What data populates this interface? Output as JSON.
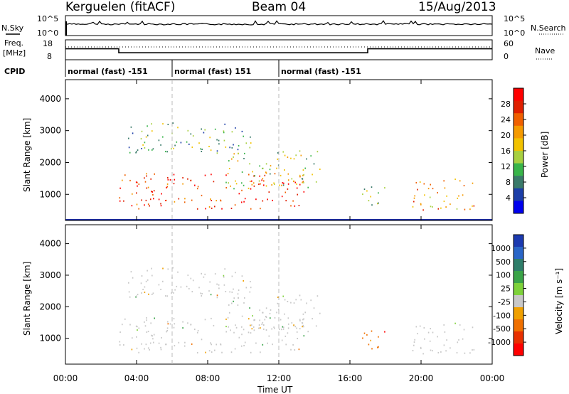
{
  "header": {
    "station": "Kerguelen (fitACF)",
    "beam": "Beam 04",
    "date": "15/Aug/2013"
  },
  "status_panels": {
    "nsky_label": "N.Sky",
    "nsearch_label": "N.Search",
    "freq_label_line1": "Freq.",
    "freq_label_line2": "[MHz]",
    "nave_label": "Nave",
    "cpid_label": "CPID",
    "nsky_ticks": [
      "10^5",
      "10^0"
    ],
    "nsearch_ticks": [
      "10^5",
      "10^0"
    ],
    "freq_ticks": [
      "18",
      "8"
    ],
    "nave_ticks": [
      "60",
      "0"
    ],
    "freq_levels": [
      {
        "start": 0,
        "end": 3,
        "mhz": 13.5
      },
      {
        "start": 3,
        "end": 17,
        "mhz": 11.5
      },
      {
        "start": 17,
        "end": 24,
        "mhz": 13.5
      }
    ],
    "cpid_segments": [
      {
        "start": 0,
        "end": 6,
        "label": "normal (fast) -151"
      },
      {
        "start": 6,
        "end": 12,
        "label": "normal (fast) 151"
      },
      {
        "start": 12,
        "end": 24,
        "label": "normal (fast) -151"
      }
    ]
  },
  "xaxis": {
    "label": "Time UT",
    "ticks": [
      "00:00",
      "04:00",
      "08:00",
      "12:00",
      "16:00",
      "20:00",
      "00:00"
    ]
  },
  "power_panel": {
    "ylabel": "Slant Range [km]",
    "yticks": [
      "1000",
      "2000",
      "3000",
      "4000"
    ],
    "colorbar_label": "Power [dB]",
    "colorbar_ticks": [
      "4",
      "8",
      "12",
      "16",
      "20",
      "24",
      "28"
    ],
    "colorbar_colors": [
      "#0000ee",
      "#1c3ea8",
      "#3a7a6a",
      "#39b54a",
      "#a8d040",
      "#f2c200",
      "#f59a00",
      "#f06000",
      "#e02000",
      "#ff0000"
    ]
  },
  "velocity_panel": {
    "ylabel": "Slant Range [km]",
    "yticks": [
      "1000",
      "2000",
      "3000",
      "4000"
    ],
    "colorbar_label": "Velocity [m s⁻¹]",
    "colorbar_ticks": [
      "1000",
      "500",
      "100",
      "25",
      "-25",
      "-100",
      "-500",
      "-1000"
    ],
    "colorbar_colors": [
      "#1c3ab0",
      "#2a66c8",
      "#2f7e6a",
      "#3aa448",
      "#7ed23a",
      "#c8c8c8",
      "#f0a000",
      "#f07000",
      "#e83000",
      "#ff0000"
    ]
  },
  "chart_data": {
    "type": "heatmap",
    "title": "Kerguelen (fitACF) Beam 04 15/Aug/2013",
    "xlabel": "Time UT",
    "ylabel": "Slant Range [km]",
    "xlim": [
      0,
      24
    ],
    "ylim": [
      180,
      4600
    ],
    "gridlines": [
      6,
      12
    ],
    "echo_regions": [
      {
        "t0": 3.0,
        "t1": 13.5,
        "r0": 550,
        "r1": 1700,
        "power_db": 26,
        "velocity": 25
      },
      {
        "t0": 3.5,
        "t1": 10.5,
        "r0": 2300,
        "r1": 3300,
        "power_db": 10,
        "velocity": 25
      },
      {
        "t0": 9.0,
        "t1": 14.5,
        "r0": 1200,
        "r1": 2400,
        "power_db": 14,
        "velocity": 25
      },
      {
        "t0": 16.5,
        "t1": 18.0,
        "r0": 600,
        "r1": 1300,
        "power_db": 12,
        "velocity": -100
      },
      {
        "t0": 19.5,
        "t1": 23.0,
        "r0": 500,
        "r1": 1500,
        "power_db": 20,
        "velocity": 25
      }
    ]
  }
}
